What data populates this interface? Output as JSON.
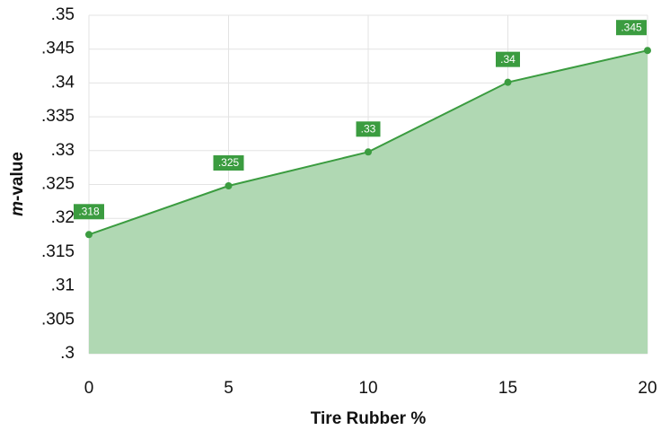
{
  "chart_data": {
    "type": "area",
    "x_label": "Tire Rubber %",
    "y_label": "m-value",
    "x": [
      0,
      5,
      10,
      15,
      20
    ],
    "series": [
      {
        "color": "#3b9c40",
        "fill": "#b0d8b3",
        "values": [
          0.3176,
          0.3248,
          0.3298,
          0.3401,
          0.3448
        ],
        "value_labels": [
          ".318",
          ".325",
          ".33",
          ".34",
          ".345"
        ]
      }
    ],
    "xlim": [
      0,
      20
    ],
    "xticks": [
      0,
      5,
      10,
      15,
      20
    ],
    "ylim": [
      0.3,
      0.35
    ],
    "yticks": [
      {
        "value": 0.3,
        "label": ".3"
      },
      {
        "value": 0.305,
        "label": ".305"
      },
      {
        "value": 0.31,
        "label": ".31"
      },
      {
        "value": 0.315,
        "label": ".315"
      },
      {
        "value": 0.32,
        "label": ".32"
      },
      {
        "value": 0.325,
        "label": ".325"
      },
      {
        "value": 0.33,
        "label": ".33"
      },
      {
        "value": 0.335,
        "label": ".335"
      },
      {
        "value": 0.34,
        "label": ".34"
      },
      {
        "value": 0.345,
        "label": ".345"
      },
      {
        "value": 0.35,
        "label": ".35"
      }
    ],
    "grid": true
  }
}
